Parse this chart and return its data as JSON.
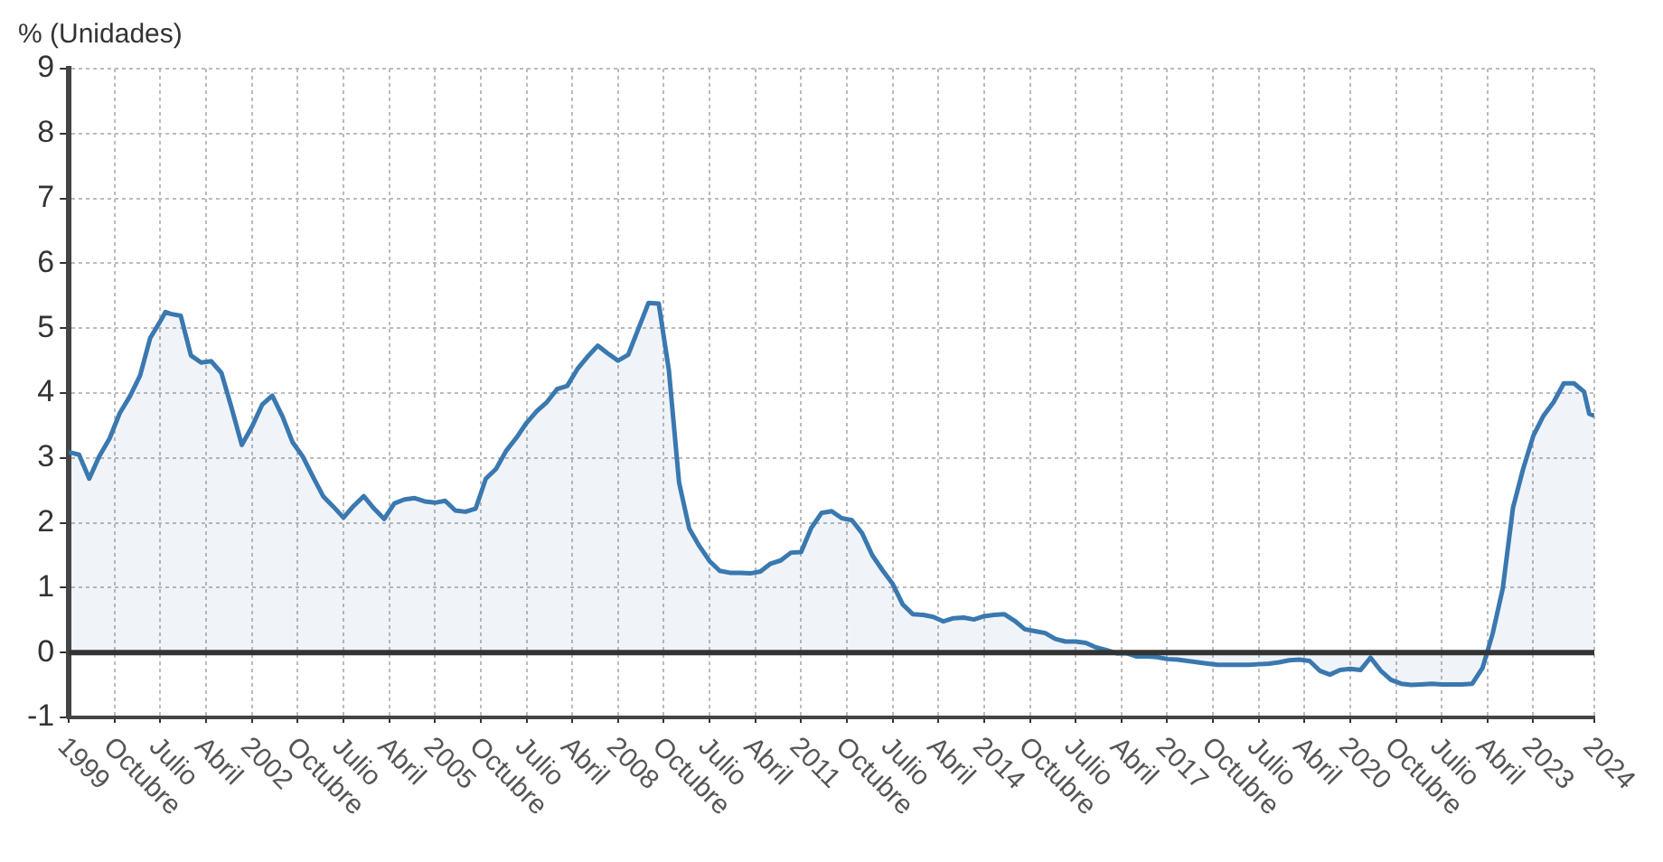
{
  "chart_data": {
    "type": "area",
    "ylabel": "% (Unidades)",
    "x": [
      "1999-01",
      "1999-03",
      "1999-05",
      "1999-07",
      "1999-09",
      "1999-11",
      "2000-01",
      "2000-03",
      "2000-05",
      "2000-07",
      "2000-08",
      "2000-09",
      "2000-11",
      "2001-01",
      "2001-03",
      "2001-05",
      "2001-07",
      "2001-09",
      "2001-11",
      "2002-01",
      "2002-03",
      "2002-05",
      "2002-07",
      "2002-09",
      "2002-11",
      "2003-01",
      "2003-03",
      "2003-05",
      "2003-07",
      "2003-09",
      "2003-11",
      "2004-01",
      "2004-03",
      "2004-05",
      "2004-07",
      "2004-09",
      "2004-11",
      "2005-01",
      "2005-03",
      "2005-05",
      "2005-07",
      "2005-09",
      "2005-11",
      "2006-01",
      "2006-03",
      "2006-05",
      "2006-07",
      "2006-09",
      "2006-11",
      "2007-01",
      "2007-03",
      "2007-05",
      "2007-07",
      "2007-09",
      "2007-11",
      "2008-01",
      "2008-03",
      "2008-05",
      "2008-07",
      "2008-09",
      "2008-11",
      "2009-01",
      "2009-03",
      "2009-05",
      "2009-07",
      "2009-09",
      "2009-11",
      "2010-01",
      "2010-03",
      "2010-05",
      "2010-07",
      "2010-09",
      "2010-11",
      "2011-01",
      "2011-03",
      "2011-05",
      "2011-07",
      "2011-09",
      "2011-11",
      "2012-01",
      "2012-03",
      "2012-05",
      "2012-07",
      "2012-09",
      "2012-11",
      "2013-01",
      "2013-03",
      "2013-05",
      "2013-07",
      "2013-09",
      "2013-11",
      "2014-01",
      "2014-03",
      "2014-05",
      "2014-07",
      "2014-09",
      "2014-11",
      "2015-01",
      "2015-03",
      "2015-05",
      "2015-07",
      "2015-09",
      "2015-11",
      "2016-01",
      "2016-03",
      "2016-05",
      "2016-07",
      "2016-09",
      "2016-11",
      "2017-01",
      "2017-03",
      "2017-05",
      "2017-07",
      "2017-09",
      "2017-11",
      "2018-01",
      "2018-03",
      "2018-05",
      "2018-07",
      "2018-09",
      "2018-11",
      "2019-01",
      "2019-03",
      "2019-05",
      "2019-07",
      "2019-09",
      "2019-11",
      "2020-01",
      "2020-03",
      "2020-05",
      "2020-07",
      "2020-09",
      "2020-11",
      "2021-01",
      "2021-03",
      "2021-05",
      "2021-07",
      "2021-09",
      "2021-11",
      "2022-01",
      "2022-03",
      "2022-05",
      "2022-07",
      "2022-09",
      "2022-11",
      "2023-01",
      "2023-03",
      "2023-05",
      "2023-07",
      "2023-09",
      "2023-11",
      "2023-12",
      "2024-01"
    ],
    "series": [
      {
        "color": "#3a78b0",
        "values": [
          3.09,
          3.05,
          2.68,
          3.03,
          3.3,
          3.69,
          3.95,
          4.27,
          4.85,
          5.11,
          5.25,
          5.22,
          5.19,
          4.58,
          4.47,
          4.49,
          4.31,
          3.77,
          3.2,
          3.48,
          3.82,
          3.96,
          3.64,
          3.24,
          3.02,
          2.71,
          2.41,
          2.25,
          2.08,
          2.26,
          2.41,
          2.22,
          2.06,
          2.3,
          2.36,
          2.38,
          2.33,
          2.31,
          2.34,
          2.19,
          2.17,
          2.22,
          2.68,
          2.83,
          3.11,
          3.31,
          3.54,
          3.72,
          3.86,
          4.06,
          4.11,
          4.37,
          4.56,
          4.73,
          4.61,
          4.5,
          4.59,
          4.99,
          5.39,
          5.38,
          4.35,
          2.62,
          1.91,
          1.64,
          1.41,
          1.26,
          1.23,
          1.23,
          1.22,
          1.25,
          1.37,
          1.42,
          1.54,
          1.55,
          1.92,
          2.15,
          2.18,
          2.07,
          2.04,
          1.84,
          1.5,
          1.27,
          1.06,
          0.74,
          0.59,
          0.58,
          0.55,
          0.48,
          0.53,
          0.54,
          0.51,
          0.56,
          0.58,
          0.59,
          0.49,
          0.36,
          0.33,
          0.3,
          0.21,
          0.17,
          0.17,
          0.15,
          0.08,
          0.04,
          -0.01,
          -0.01,
          -0.06,
          -0.06,
          -0.07,
          -0.1,
          -0.11,
          -0.13,
          -0.15,
          -0.17,
          -0.19,
          -0.19,
          -0.19,
          -0.19,
          -0.18,
          -0.17,
          -0.15,
          -0.12,
          -0.11,
          -0.13,
          -0.28,
          -0.34,
          -0.27,
          -0.25,
          -0.27,
          -0.08,
          -0.28,
          -0.42,
          -0.48,
          -0.5,
          -0.49,
          -0.48,
          -0.49,
          -0.49,
          -0.49,
          -0.48,
          -0.24,
          0.29,
          0.99,
          2.23,
          2.83,
          3.34,
          3.65,
          3.86,
          4.15,
          4.15,
          4.02,
          3.68,
          3.65
        ]
      }
    ],
    "xlim": [
      "1999-01",
      "2024-01"
    ],
    "xticks": [
      {
        "value": "1999-01",
        "label": "1999"
      },
      {
        "value": "1999-10",
        "label": "Octubre"
      },
      {
        "value": "2000-07",
        "label": "Julio"
      },
      {
        "value": "2001-04",
        "label": "Abril"
      },
      {
        "value": "2002-01",
        "label": "2002"
      },
      {
        "value": "2002-10",
        "label": "Octubre"
      },
      {
        "value": "2003-07",
        "label": "Julio"
      },
      {
        "value": "2004-04",
        "label": "Abril"
      },
      {
        "value": "2005-01",
        "label": "2005"
      },
      {
        "value": "2005-10",
        "label": "Octubre"
      },
      {
        "value": "2006-07",
        "label": "Julio"
      },
      {
        "value": "2007-04",
        "label": "Abril"
      },
      {
        "value": "2008-01",
        "label": "2008"
      },
      {
        "value": "2008-10",
        "label": "Octubre"
      },
      {
        "value": "2009-07",
        "label": "Julio"
      },
      {
        "value": "2010-04",
        "label": "Abril"
      },
      {
        "value": "2011-01",
        "label": "2011"
      },
      {
        "value": "2011-10",
        "label": "Octubre"
      },
      {
        "value": "2012-07",
        "label": "Julio"
      },
      {
        "value": "2013-04",
        "label": "Abril"
      },
      {
        "value": "2014-01",
        "label": "2014"
      },
      {
        "value": "2014-10",
        "label": "Octubre"
      },
      {
        "value": "2015-07",
        "label": "Julio"
      },
      {
        "value": "2016-04",
        "label": "Abril"
      },
      {
        "value": "2017-01",
        "label": "2017"
      },
      {
        "value": "2017-10",
        "label": "Octubre"
      },
      {
        "value": "2018-07",
        "label": "Julio"
      },
      {
        "value": "2019-04",
        "label": "Abril"
      },
      {
        "value": "2020-01",
        "label": "2020"
      },
      {
        "value": "2020-10",
        "label": "Octubre"
      },
      {
        "value": "2021-07",
        "label": "Julio"
      },
      {
        "value": "2022-04",
        "label": "Abril"
      },
      {
        "value": "2023-01",
        "label": "2023"
      },
      {
        "value": "2024-01",
        "label": "2024"
      }
    ],
    "ylim": [
      -1,
      9
    ],
    "yticks": [
      -1,
      0,
      1,
      2,
      3,
      4,
      5,
      6,
      7,
      8,
      9
    ],
    "ref_lines": [
      {
        "axis": "y",
        "value": 0,
        "color": "#333333"
      }
    ],
    "grid": true,
    "legend": false,
    "marker": "none",
    "line_style": "solid"
  }
}
